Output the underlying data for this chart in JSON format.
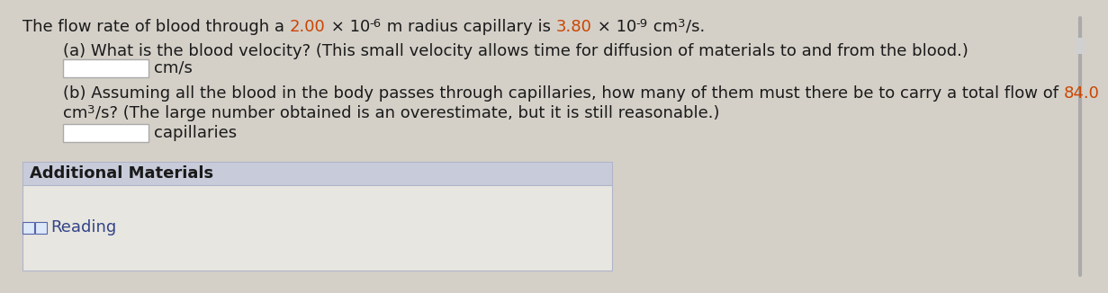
{
  "bg_color": "#d4d0c8",
  "content_bg": "#e8e6e0",
  "text_color": "#1a1a1a",
  "highlight_color": "#cc4400",
  "box_border": "#aaaaaa",
  "box_fill": "#ffffff",
  "add_mat_bg": "#c8ccda",
  "add_mat_border": "#b0b4c8",
  "reading_bg": "#e8e6e0",
  "reading_text_color": "#334488",
  "title_text": "The flow rate of blood through a ",
  "title_v1": "2.00",
  "title_m1": " × 10",
  "title_e1": "-6",
  "title_m2": " m radius capillary is ",
  "title_v2": "3.80",
  "title_m3": " × 10",
  "title_e2": "-9",
  "title_m4": " cm",
  "title_e3": "3",
  "title_end": "/s.",
  "part_a": "(a) What is the blood velocity? (This small velocity allows time for diffusion of materials to and from the blood.)",
  "part_a_unit": "cm/s",
  "part_b1": "(b) Assuming all the blood in the body passes through capillaries, how many of them must there be to carry a total flow of ",
  "part_b_val": "84.0",
  "part_b2": "cm",
  "part_b_exp": "3",
  "part_b3": "/s? (The large number obtained is an overestimate, but it is still reasonable.)",
  "part_b_unit": "capillaries",
  "additional_label": "Additional Materials",
  "reading_label": "Reading",
  "fs_main": 13.0,
  "fs_super": 9.5
}
